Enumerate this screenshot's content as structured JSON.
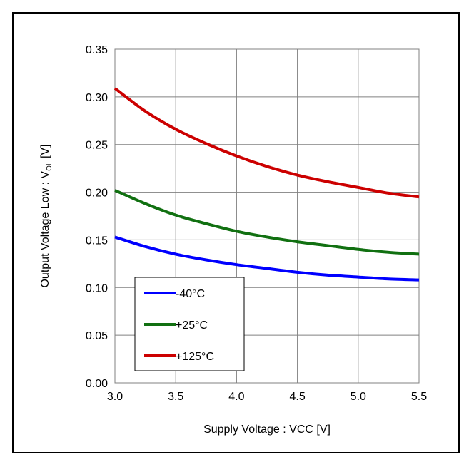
{
  "chart_data": {
    "type": "line",
    "xlabel": "Supply Voltage : VCC [V]",
    "ylabel_main": "Output Voltage Low : V",
    "ylabel_sub": "OL",
    "ylabel_unit": " [V]",
    "xlim": [
      3.0,
      5.5
    ],
    "ylim": [
      0.0,
      0.35
    ],
    "xticks": [
      "3.0",
      "3.5",
      "4.0",
      "4.5",
      "5.0",
      "5.5"
    ],
    "yticks": [
      "0.00",
      "0.05",
      "0.10",
      "0.15",
      "0.20",
      "0.25",
      "0.30",
      "0.35"
    ],
    "grid": true,
    "legend_position": "bottom-left",
    "x": [
      3.0,
      3.25,
      3.5,
      3.75,
      4.0,
      4.25,
      4.5,
      4.75,
      5.0,
      5.25,
      5.5
    ],
    "series": [
      {
        "name": "-40°C",
        "color": "#0000ff",
        "values": [
          0.153,
          0.143,
          0.135,
          0.129,
          0.124,
          0.12,
          0.116,
          0.113,
          0.111,
          0.109,
          0.108
        ]
      },
      {
        "name": "+25°C",
        "color": "#117011",
        "values": [
          0.202,
          0.188,
          0.176,
          0.167,
          0.159,
          0.153,
          0.148,
          0.144,
          0.14,
          0.137,
          0.135
        ]
      },
      {
        "name": "+125°C",
        "color": "#cc0000",
        "values": [
          0.309,
          0.285,
          0.266,
          0.251,
          0.238,
          0.227,
          0.218,
          0.211,
          0.205,
          0.199,
          0.195
        ]
      }
    ]
  }
}
